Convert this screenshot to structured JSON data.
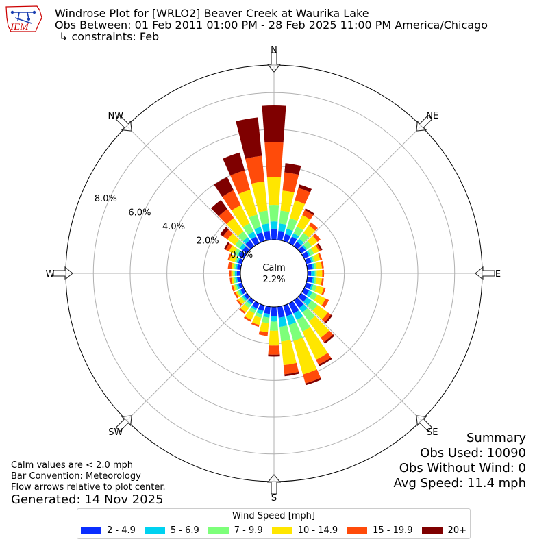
{
  "logo": {
    "text": "IEM"
  },
  "title": {
    "line1": "Windrose Plot for [WRLO2] Beaver Creek at Waurika Lake",
    "line2": "Obs Between: 01 Feb 2011 01:00 PM - 28 Feb 2025 11:00 PM America/Chicago",
    "line3": "↳ constraints: Feb"
  },
  "notes": {
    "calm_note": "Calm values are < 2.0 mph",
    "bar_convention": "Bar Convention: Meteorology",
    "flow_arrows": "Flow arrows relative to plot center.",
    "generated": "Generated: 14 Nov 2025"
  },
  "summary": {
    "heading": "Summary",
    "obs_used": "Obs Used: 10090",
    "obs_without_wind": "Obs Without Wind: 0",
    "avg_speed": "Avg Speed: 11.4 mph"
  },
  "chart_data": {
    "type": "windrose",
    "calm_label": "Calm",
    "calm_value": "2.2%",
    "calm_percent": 2.2,
    "radial_max": 9.5,
    "radial_ticks": [
      0,
      2,
      4,
      6,
      8
    ],
    "radial_tick_labels": [
      "0.0%",
      "2.0%",
      "4.0%",
      "6.0%",
      "8.0%"
    ],
    "direction_labels": [
      "N",
      "NE",
      "E",
      "SE",
      "S",
      "SW",
      "W",
      "NW"
    ],
    "direction_angles": [
      0,
      45,
      90,
      135,
      180,
      225,
      270,
      315
    ],
    "legend_title": "Wind Speed [mph]",
    "speed_bins": [
      "2 - 4.9",
      "5 - 6.9",
      "7 - 9.9",
      "10 - 14.9",
      "15 - 19.9",
      "20+"
    ],
    "colors": [
      "#0a2eff",
      "#00d2f0",
      "#7dff7a",
      "#ffe600",
      "#ff4b0a",
      "#7f0000"
    ],
    "directions": [
      0,
      10,
      20,
      30,
      40,
      50,
      60,
      70,
      80,
      90,
      100,
      110,
      120,
      130,
      140,
      150,
      160,
      170,
      180,
      190,
      200,
      210,
      220,
      230,
      240,
      250,
      260,
      270,
      280,
      290,
      300,
      310,
      320,
      330,
      340,
      350
    ],
    "cumulative": [
      [
        0.6,
        1.0,
        1.9,
        3.4,
        5.3,
        7.3
      ],
      [
        0.5,
        0.9,
        1.6,
        2.7,
        3.7,
        4.2
      ],
      [
        0.4,
        0.7,
        1.3,
        2.3,
        3.0,
        3.2
      ],
      [
        0.4,
        0.6,
        1.0,
        1.7,
        2.0,
        2.1
      ],
      [
        0.3,
        0.5,
        0.9,
        1.4,
        1.6,
        1.6
      ],
      [
        0.3,
        0.4,
        0.7,
        1.1,
        1.3,
        1.3
      ],
      [
        0.3,
        0.4,
        0.6,
        0.9,
        1.0,
        1.1
      ],
      [
        0.3,
        0.4,
        0.5,
        0.8,
        0.9,
        0.9
      ],
      [
        0.3,
        0.4,
        0.5,
        0.8,
        0.9,
        0.9
      ],
      [
        0.2,
        0.4,
        0.5,
        0.8,
        0.9,
        0.9
      ],
      [
        0.3,
        0.4,
        0.5,
        0.8,
        0.9,
        0.9
      ],
      [
        0.3,
        0.4,
        0.6,
        1.0,
        1.1,
        1.1
      ],
      [
        0.3,
        0.5,
        0.8,
        1.3,
        1.5,
        1.5
      ],
      [
        0.4,
        0.7,
        1.1,
        1.8,
        2.0,
        2.1
      ],
      [
        0.5,
        0.8,
        1.4,
        2.5,
        2.8,
        2.9
      ],
      [
        0.6,
        1.0,
        1.7,
        3.4,
        3.7,
        3.8
      ],
      [
        0.6,
        1.1,
        2.0,
        3.9,
        4.4,
        4.5
      ],
      [
        0.6,
        1.1,
        1.9,
        3.2,
        3.7,
        3.8
      ],
      [
        0.5,
        0.8,
        1.3,
        2.1,
        2.6,
        2.7
      ],
      [
        0.4,
        0.6,
        0.9,
        1.4,
        1.6,
        1.6
      ],
      [
        0.3,
        0.5,
        0.7,
        1.1,
        1.2,
        1.2
      ],
      [
        0.3,
        0.4,
        0.6,
        1.0,
        1.1,
        1.1
      ],
      [
        0.2,
        0.3,
        0.5,
        0.8,
        0.9,
        0.9
      ],
      [
        0.2,
        0.3,
        0.4,
        0.6,
        0.7,
        0.7
      ],
      [
        0.2,
        0.3,
        0.4,
        0.5,
        0.6,
        0.6
      ],
      [
        0.2,
        0.3,
        0.4,
        0.5,
        0.6,
        0.6
      ],
      [
        0.2,
        0.3,
        0.4,
        0.5,
        0.6,
        0.6
      ],
      [
        0.2,
        0.3,
        0.4,
        0.5,
        0.6,
        0.6
      ],
      [
        0.2,
        0.3,
        0.4,
        0.5,
        0.7,
        0.7
      ],
      [
        0.2,
        0.3,
        0.4,
        0.7,
        0.8,
        0.8
      ],
      [
        0.3,
        0.4,
        0.6,
        0.9,
        1.1,
        1.2
      ],
      [
        0.3,
        0.5,
        0.8,
        1.3,
        1.6,
        1.8
      ],
      [
        0.4,
        0.6,
        1.0,
        1.9,
        2.5,
        3.1
      ],
      [
        0.4,
        0.7,
        1.2,
        2.3,
        3.2,
        4.0
      ],
      [
        0.5,
        0.8,
        1.5,
        2.9,
        4.0,
        5.0
      ],
      [
        0.5,
        0.9,
        1.6,
        3.2,
        4.6,
        6.7
      ]
    ]
  }
}
